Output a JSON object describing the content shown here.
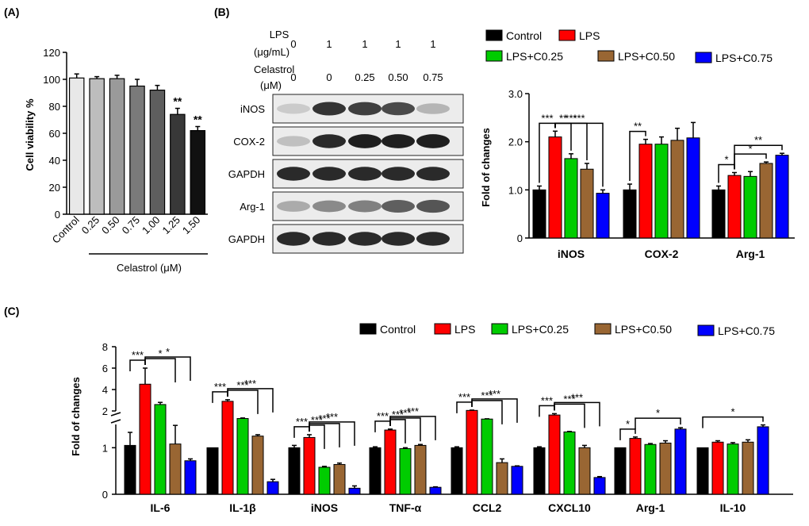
{
  "panel_a": {
    "label": "(A)",
    "chart_data": {
      "type": "bar",
      "categories": [
        "Control",
        "0.25",
        "0.50",
        "0.75",
        "1.00",
        "1.25",
        "1.50"
      ],
      "values": [
        101,
        100.5,
        100.5,
        95,
        92,
        74,
        62
      ],
      "errors": [
        3,
        1.5,
        2.5,
        5,
        3.5,
        4.5,
        3
      ],
      "significance": [
        "",
        "",
        "",
        "",
        "",
        "**",
        "**"
      ],
      "colors": [
        "#e8e8e8",
        "#bdbdbd",
        "#9a9a9a",
        "#7a7a7a",
        "#5e5e5e",
        "#383838",
        "#111111"
      ],
      "ylabel": "Cell viability %",
      "xgroup_label": "Celastrol (μM)",
      "ylim": [
        0,
        120
      ],
      "yticks": [
        0,
        20,
        40,
        60,
        80,
        100,
        120
      ]
    }
  },
  "panel_b": {
    "label": "(B)",
    "blot": {
      "row1_label": "LPS",
      "row1_unit": "(μg/mL)",
      "row1_values": [
        "0",
        "1",
        "1",
        "1",
        "1"
      ],
      "row2_label": "Celastrol",
      "row2_unit": "(μM)",
      "row2_values": [
        "0",
        "0",
        "0.25",
        "0.50",
        "0.75"
      ],
      "proteins": [
        "iNOS",
        "COX-2",
        "GAPDH",
        "Arg-1",
        "GAPDH"
      ],
      "band_intensity": [
        [
          0.15,
          0.85,
          0.8,
          0.75,
          0.25
        ],
        [
          0.2,
          0.9,
          0.95,
          0.95,
          0.95
        ],
        [
          0.9,
          0.9,
          0.9,
          0.9,
          0.9
        ],
        [
          0.3,
          0.45,
          0.5,
          0.65,
          0.7
        ],
        [
          0.9,
          0.9,
          0.9,
          0.9,
          0.9
        ]
      ]
    },
    "chart_data": {
      "type": "bar",
      "categories": [
        "iNOS",
        "COX-2",
        "Arg-1"
      ],
      "series": [
        {
          "name": "Control",
          "color": "#000000",
          "values": [
            1.0,
            1.0,
            1.0
          ],
          "errors": [
            0.08,
            0.12,
            0.08
          ]
        },
        {
          "name": "LPS",
          "color": "#ff0000",
          "values": [
            2.1,
            1.95,
            1.3
          ],
          "errors": [
            0.12,
            0.1,
            0.06
          ]
        },
        {
          "name": "LPS+C0.25",
          "color": "#00cc00",
          "values": [
            1.65,
            1.95,
            1.28
          ],
          "errors": [
            0.1,
            0.15,
            0.1
          ]
        },
        {
          "name": "LPS+C0.50",
          "color": "#996633",
          "values": [
            1.43,
            2.03,
            1.55
          ],
          "errors": [
            0.12,
            0.25,
            0.03
          ]
        },
        {
          "name": "LPS+C0.75",
          "color": "#0000ff",
          "values": [
            0.93,
            2.08,
            1.72
          ],
          "errors": [
            0.07,
            0.32,
            0.04
          ]
        }
      ],
      "ylabel": "Fold of changes",
      "ylim": [
        0,
        3.0
      ],
      "yticks": [
        "0",
        "1.0",
        "2.0",
        "3.0"
      ],
      "significance": [
        {
          "group": 0,
          "from": 0,
          "to": 1,
          "text": "***"
        },
        {
          "group": 0,
          "from": 1,
          "to": 2,
          "text": "**"
        },
        {
          "group": 0,
          "from": 1,
          "to": 3,
          "text": "***"
        },
        {
          "group": 0,
          "from": 1,
          "to": 4,
          "text": "***"
        },
        {
          "group": 1,
          "from": 0,
          "to": 1,
          "text": "**"
        },
        {
          "group": 2,
          "from": 0,
          "to": 1,
          "text": "*"
        },
        {
          "group": 2,
          "from": 1,
          "to": 3,
          "text": "*"
        },
        {
          "group": 2,
          "from": 1,
          "to": 4,
          "text": "**"
        }
      ]
    }
  },
  "panel_c": {
    "label": "(C)",
    "chart_data": {
      "type": "bar",
      "categories": [
        "IL-6",
        "IL-1β",
        "iNOS",
        "TNF-α",
        "CCL2",
        "CXCL10",
        "Arg-1",
        "IL-10"
      ],
      "series": [
        {
          "name": "Control",
          "color": "#000000",
          "values": [
            1.05,
            1.0,
            1.0,
            1.0,
            1.0,
            1.0,
            1.0,
            1.0
          ],
          "errors": [
            0.28,
            0,
            0.05,
            0.02,
            0.02,
            0.02,
            0,
            0
          ]
        },
        {
          "name": "LPS",
          "color": "#ff0000",
          "values": [
            4.5,
            2.9,
            1.22,
            1.38,
            2.05,
            1.85,
            1.2,
            1.12
          ],
          "errors": [
            1.5,
            0.15,
            0.06,
            0.02,
            0.03,
            0.05,
            0.03,
            0.03
          ]
        },
        {
          "name": "LPS+C0.25",
          "color": "#00cc00",
          "values": [
            2.6,
            1.72,
            0.58,
            0.98,
            1.7,
            1.34,
            1.07,
            1.08
          ],
          "errors": [
            0.2,
            0.02,
            0.02,
            0.02,
            0.01,
            0.01,
            0.02,
            0.03
          ]
        },
        {
          "name": "LPS+C0.50",
          "color": "#996633",
          "values": [
            1.08,
            1.25,
            0.64,
            1.05,
            0.68,
            1.0,
            1.1,
            1.12
          ],
          "errors": [
            0.4,
            0.03,
            0.03,
            0.02,
            0.08,
            0.05,
            0.05,
            0.05
          ]
        },
        {
          "name": "LPS+C0.75",
          "color": "#0000ff",
          "values": [
            0.72,
            0.27,
            0.13,
            0.15,
            0.6,
            0.36,
            1.4,
            1.45
          ],
          "errors": [
            0.04,
            0.05,
            0.05,
            0.01,
            0.01,
            0.02,
            0.03,
            0.04
          ]
        }
      ],
      "ylabel": "Fold of changes",
      "ylim_lower": [
        0,
        1.5
      ],
      "ylim_upper": [
        2,
        8
      ],
      "yticks_lower": [
        "0",
        "1"
      ],
      "yticks_upper": [
        "2",
        "4",
        "6",
        "8"
      ],
      "axis_break": true,
      "significance": [
        {
          "group": 0,
          "from": 0,
          "to": 1,
          "text": "***"
        },
        {
          "group": 0,
          "from": 1,
          "to": 3,
          "text": "*"
        },
        {
          "group": 0,
          "from": 1,
          "to": 4,
          "text": "*"
        },
        {
          "group": 1,
          "from": 0,
          "to": 1,
          "text": "***"
        },
        {
          "group": 1,
          "from": 1,
          "to": 3,
          "text": "***"
        },
        {
          "group": 1,
          "from": 1,
          "to": 4,
          "text": "***"
        },
        {
          "group": 2,
          "from": 0,
          "to": 1,
          "text": "***"
        },
        {
          "group": 2,
          "from": 1,
          "to": 2,
          "text": "***"
        },
        {
          "group": 2,
          "from": 1,
          "to": 3,
          "text": "***"
        },
        {
          "group": 2,
          "from": 1,
          "to": 4,
          "text": "***"
        },
        {
          "group": 3,
          "from": 0,
          "to": 1,
          "text": "***"
        },
        {
          "group": 3,
          "from": 1,
          "to": 2,
          "text": "***"
        },
        {
          "group": 3,
          "from": 1,
          "to": 3,
          "text": "***"
        },
        {
          "group": 3,
          "from": 1,
          "to": 4,
          "text": "***"
        },
        {
          "group": 4,
          "from": 0,
          "to": 1,
          "text": "***"
        },
        {
          "group": 4,
          "from": 1,
          "to": 3,
          "text": "***"
        },
        {
          "group": 4,
          "from": 1,
          "to": 4,
          "text": "***"
        },
        {
          "group": 5,
          "from": 0,
          "to": 1,
          "text": "***"
        },
        {
          "group": 5,
          "from": 1,
          "to": 3,
          "text": "***"
        },
        {
          "group": 5,
          "from": 1,
          "to": 4,
          "text": "***"
        },
        {
          "group": 6,
          "from": 0,
          "to": 1,
          "text": "*"
        },
        {
          "group": 6,
          "from": 1,
          "to": 4,
          "text": "*"
        },
        {
          "group": 7,
          "from": 0,
          "to": 4,
          "text": "*"
        }
      ]
    }
  }
}
